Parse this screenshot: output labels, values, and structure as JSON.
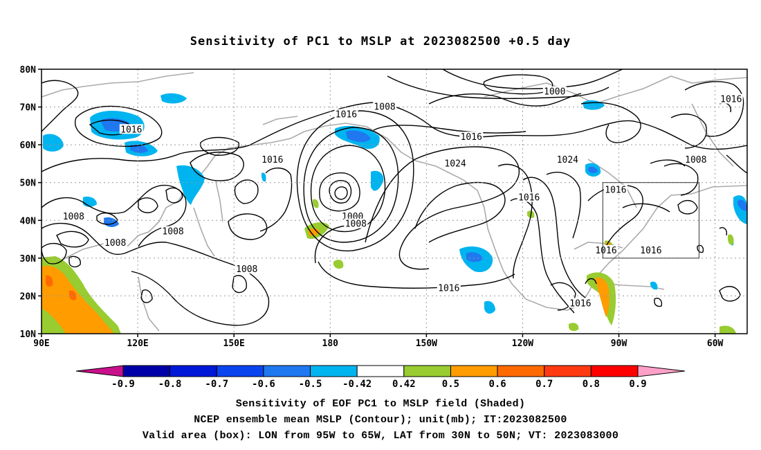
{
  "title": "Sensitivity of PC1 to MSLP at 2023082500 +0.5 day",
  "map": {
    "lat_ticks": [
      "80N",
      "70N",
      "60N",
      "50N",
      "40N",
      "30N",
      "20N",
      "10N"
    ],
    "lon_ticks": [
      "90E",
      "120E",
      "150E",
      "180",
      "150W",
      "120W",
      "90W",
      "60W"
    ],
    "lon_range": [
      "90E",
      "50W"
    ],
    "lat_range": [
      "10N",
      "80N"
    ],
    "grid": "dotted"
  },
  "contour_labels": [
    {
      "text": "1016",
      "lon": 118,
      "lat": 64
    },
    {
      "text": "1016",
      "lon": 162,
      "lat": 56
    },
    {
      "text": "1016",
      "lon": 185,
      "lat": 68
    },
    {
      "text": "1008",
      "lon": 197,
      "lat": 70
    },
    {
      "text": "1016",
      "lon": 224,
      "lat": 62
    },
    {
      "text": "1024",
      "lon": 219,
      "lat": 55
    },
    {
      "text": "1024",
      "lon": 254,
      "lat": 56
    },
    {
      "text": "1000",
      "lon": 250,
      "lat": 74
    },
    {
      "text": "1016",
      "lon": 305,
      "lat": 72
    },
    {
      "text": "1008",
      "lon": 294,
      "lat": 56
    },
    {
      "text": "1016",
      "lon": 269,
      "lat": 48
    },
    {
      "text": "1016",
      "lon": 242,
      "lat": 46
    },
    {
      "text": "1000",
      "lon": 187,
      "lat": 41
    },
    {
      "text": "1008",
      "lon": 188,
      "lat": 39
    },
    {
      "text": "1008",
      "lon": 100,
      "lat": 41
    },
    {
      "text": "1008",
      "lon": 113,
      "lat": 34
    },
    {
      "text": "1008",
      "lon": 131,
      "lat": 37
    },
    {
      "text": "1008",
      "lon": 154,
      "lat": 27
    },
    {
      "text": "1016",
      "lon": 217,
      "lat": 22
    },
    {
      "text": "1016",
      "lon": 266,
      "lat": 32
    },
    {
      "text": "1016",
      "lon": 280,
      "lat": 32
    },
    {
      "text": "1016",
      "lon": 258,
      "lat": 18
    }
  ],
  "valid_box": {
    "lon_west": "95W",
    "lon_east": "65W",
    "lat_south": "30N",
    "lat_north": "50N"
  },
  "colorbar": {
    "labels": [
      "-0.9",
      "-0.8",
      "-0.7",
      "-0.6",
      "-0.5",
      "-0.42",
      "0.42",
      "0.5",
      "0.6",
      "0.7",
      "0.8",
      "0.9"
    ],
    "colors": [
      "#0000a8",
      "#0018d8",
      "#0a44f0",
      "#1f78f0",
      "#00b4f0",
      "#ffffff",
      "#98cc30",
      "#ff9c00",
      "#ff6a00",
      "#ff3a10",
      "#ff0000"
    ],
    "low_extend_color": "#c8108c",
    "high_extend_color": "#ffa0c8"
  },
  "captions": {
    "line1": "Sensitivity of EOF PC1 to MSLP field (Shaded)",
    "line2": "NCEP ensemble mean MSLP (Contour); unit(mb); IT:2023082500",
    "line3": "Valid area (box): LON from 95W to 65W, LAT from 30N to 50N; VT: 2023083000"
  }
}
